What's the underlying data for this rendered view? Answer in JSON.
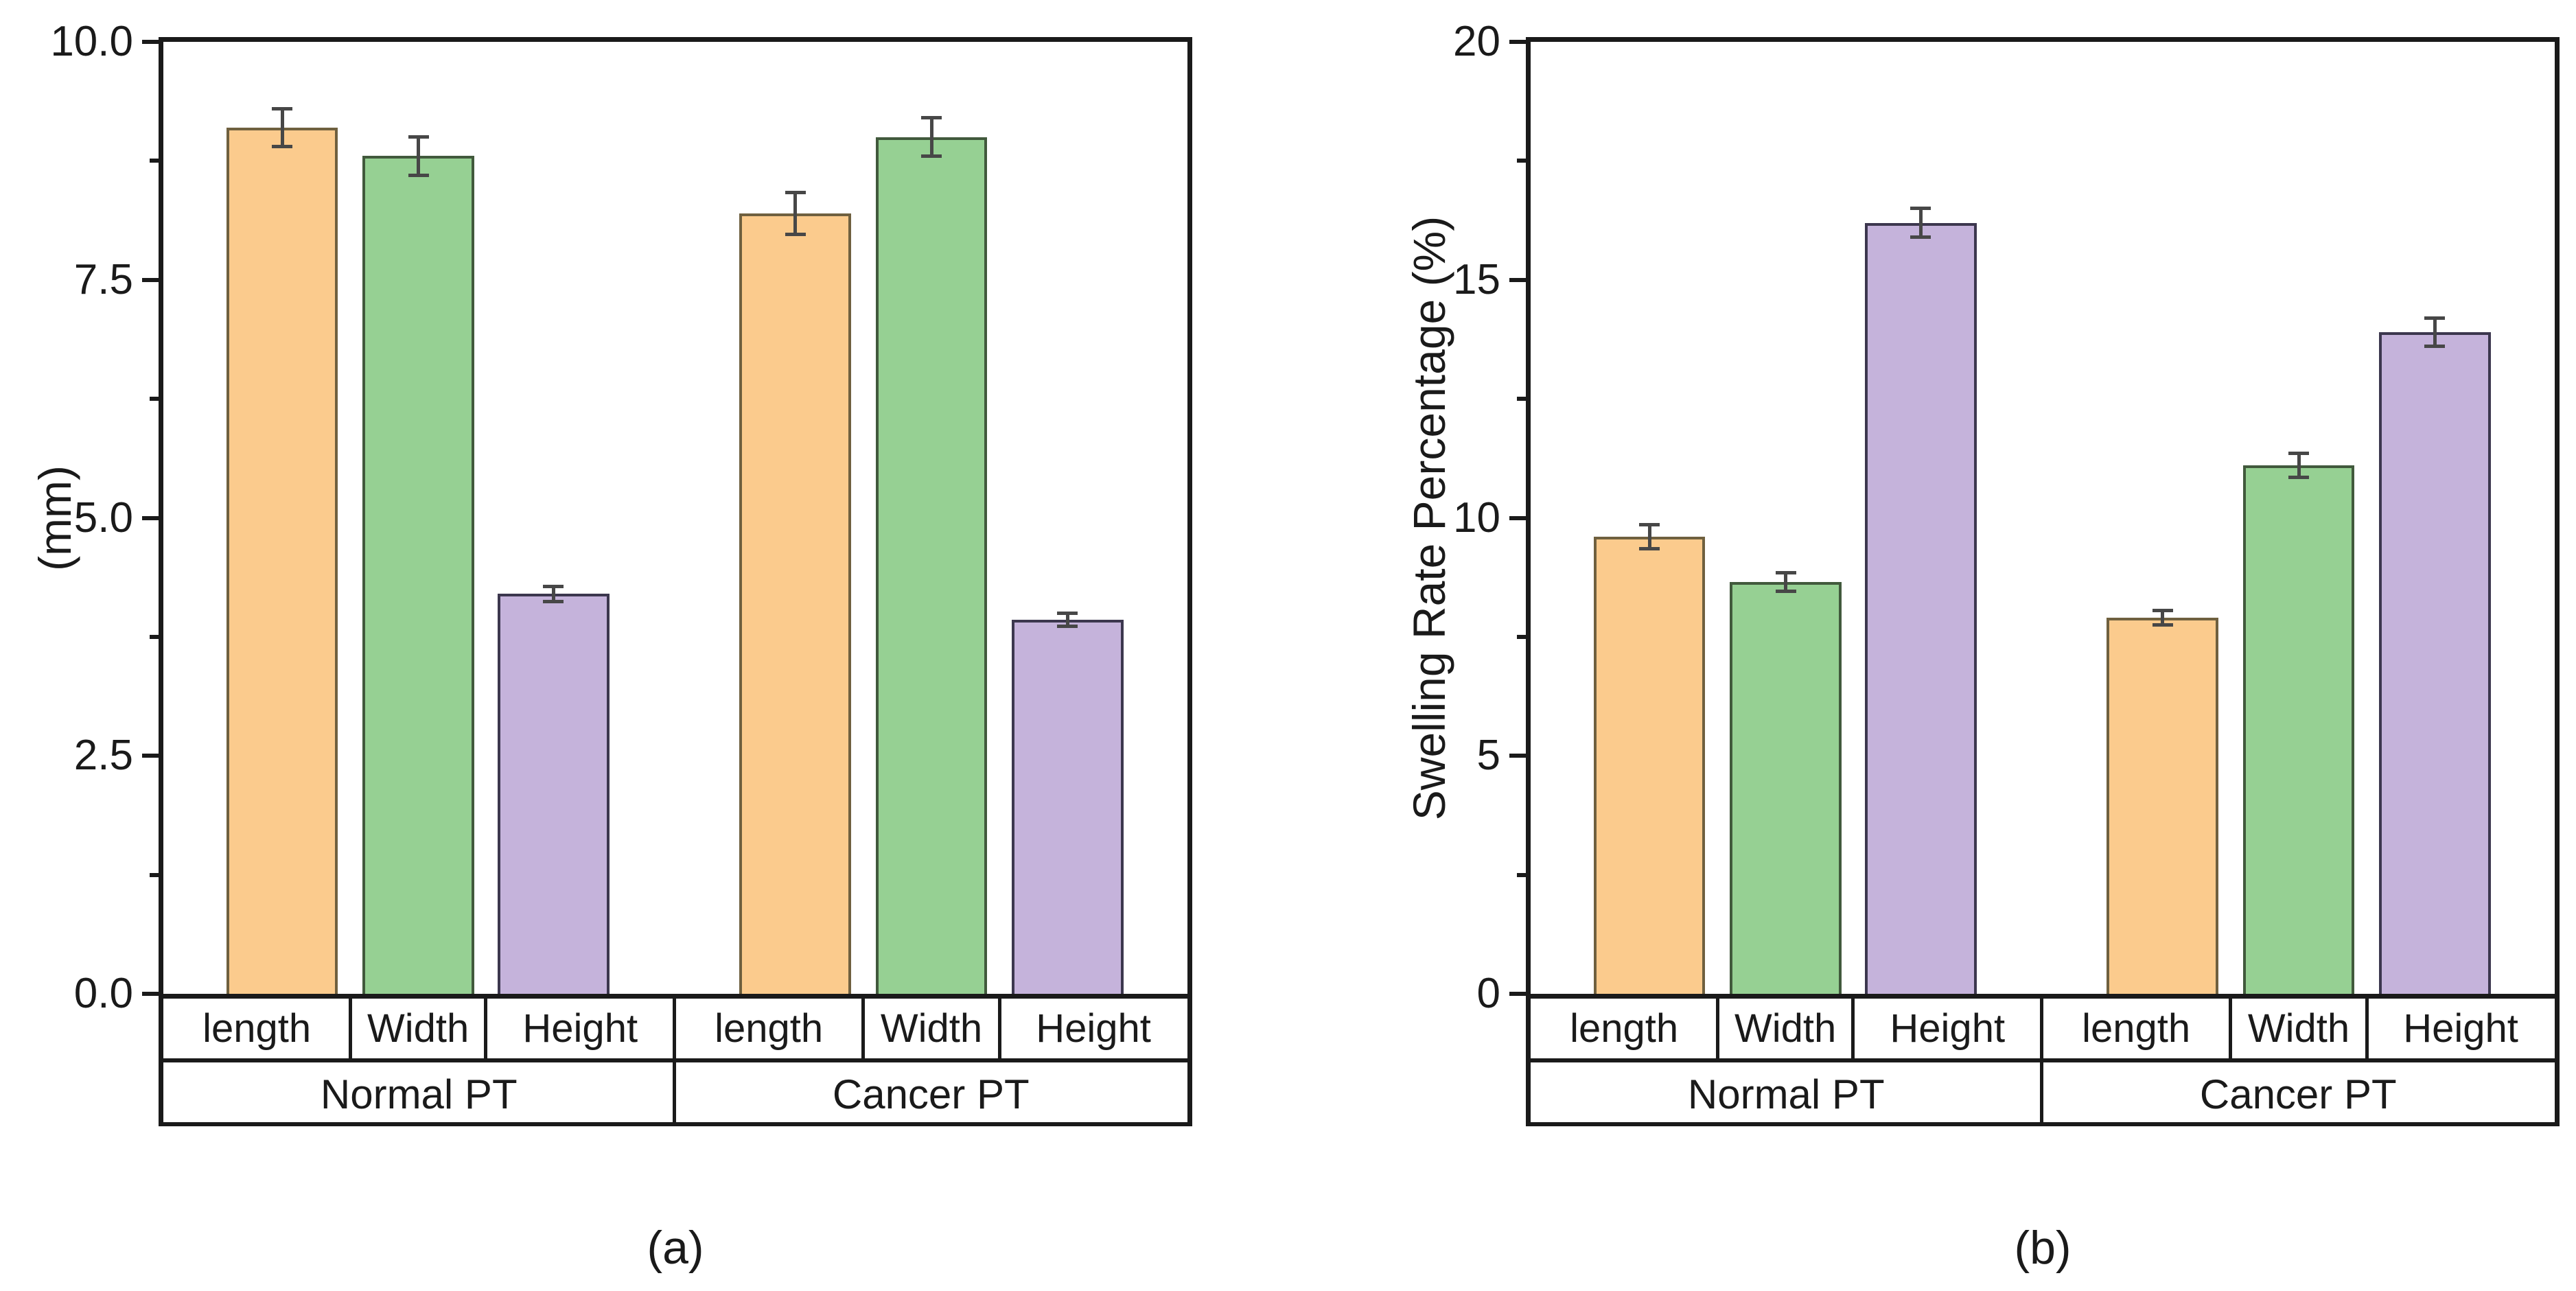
{
  "figure": {
    "background": "#ffffff",
    "frame_color": "#1a1a1a",
    "error_bar_color": "#474747",
    "series_styles": {
      "length": {
        "fill": "#FBCB8D",
        "edge": "#6F603F"
      },
      "Width": {
        "fill": "#96D093",
        "edge": "#41593C"
      },
      "Height": {
        "fill": "#C5B3DB",
        "edge": "#3C374E"
      }
    }
  },
  "chart_data": [
    {
      "type": "bar",
      "panel_label": "(a)",
      "ylabel": "(mm)",
      "ylim": [
        0,
        10
      ],
      "grid": false,
      "legend": null,
      "ytick_values": [
        0,
        2.5,
        5,
        7.5,
        10
      ],
      "ytick_labels": [
        "0.0",
        "2.5",
        "5.0",
        "7.5",
        "10.0"
      ],
      "minor_tick_values": [
        1.25,
        3.75,
        6.25,
        8.75
      ],
      "groups": [
        "Normal PT",
        "Cancer PT"
      ],
      "categories": [
        "length",
        "Width",
        "Height"
      ],
      "bars": [
        {
          "group": "Normal PT",
          "category": "length",
          "value": 9.1,
          "error": 0.2
        },
        {
          "group": "Normal PT",
          "category": "Width",
          "value": 8.8,
          "error": 0.2
        },
        {
          "group": "Normal PT",
          "category": "Height",
          "value": 4.2,
          "error": 0.08
        },
        {
          "group": "Cancer PT",
          "category": "length",
          "value": 8.2,
          "error": 0.22
        },
        {
          "group": "Cancer PT",
          "category": "Width",
          "value": 9.0,
          "error": 0.2
        },
        {
          "group": "Cancer PT",
          "category": "Height",
          "value": 3.93,
          "error": 0.07
        }
      ]
    },
    {
      "type": "bar",
      "panel_label": "(b)",
      "ylabel": "Swelling Rate Percentage (%)",
      "ylim": [
        0,
        20
      ],
      "grid": false,
      "legend": null,
      "ytick_values": [
        0,
        5,
        10,
        15,
        20
      ],
      "ytick_labels": [
        "0",
        "5",
        "10",
        "15",
        "20"
      ],
      "minor_tick_values": [
        2.5,
        7.5,
        12.5,
        17.5
      ],
      "groups": [
        "Normal PT",
        "Cancer PT"
      ],
      "categories": [
        "length",
        "Width",
        "Height"
      ],
      "bars": [
        {
          "group": "Normal PT",
          "category": "length",
          "value": 9.6,
          "error": 0.25
        },
        {
          "group": "Normal PT",
          "category": "Width",
          "value": 8.65,
          "error": 0.2
        },
        {
          "group": "Normal PT",
          "category": "Height",
          "value": 16.2,
          "error": 0.3
        },
        {
          "group": "Cancer PT",
          "category": "length",
          "value": 7.9,
          "error": 0.15
        },
        {
          "group": "Cancer PT",
          "category": "Width",
          "value": 11.1,
          "error": 0.25
        },
        {
          "group": "Cancer PT",
          "category": "Height",
          "value": 13.9,
          "error": 0.3
        }
      ]
    }
  ]
}
